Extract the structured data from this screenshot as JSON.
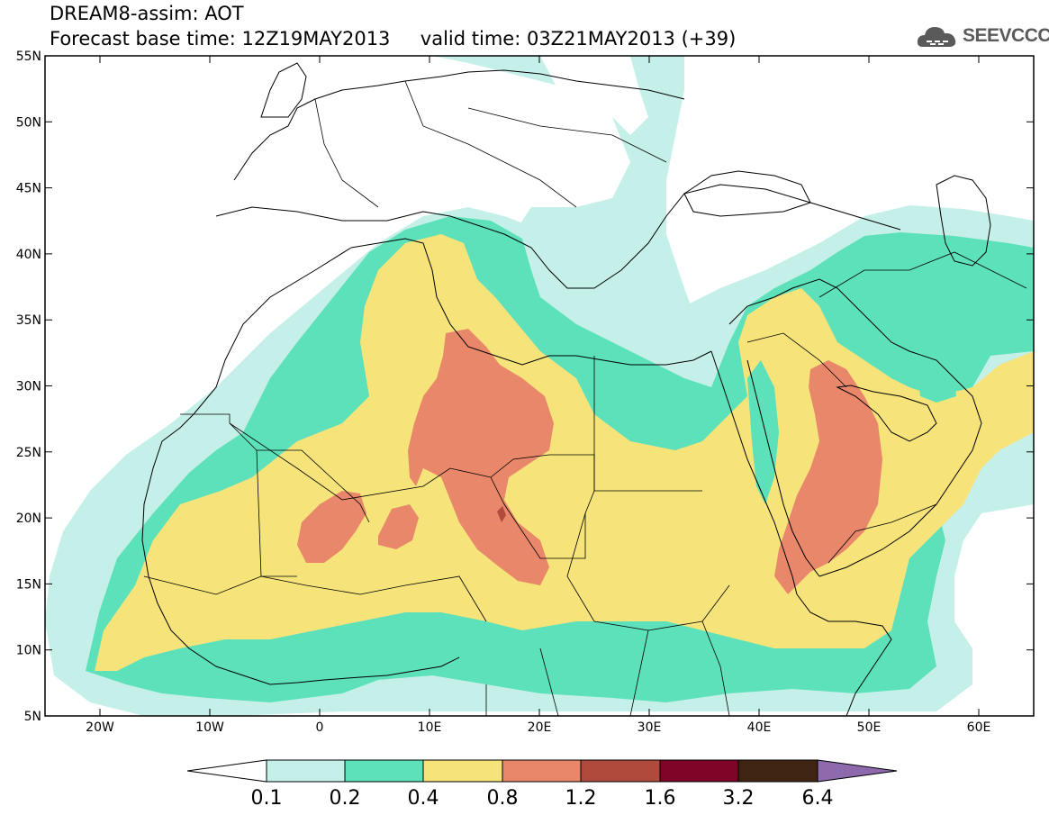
{
  "header": {
    "line1": "DREAM8-assim: AOT",
    "line2": "Forecast base time: 12Z19MAY2013     valid time: 03Z21MAY2013 (+39)"
  },
  "logo": {
    "text": "SEEVCCC"
  },
  "map": {
    "lat_labels": [
      "55N",
      "50N",
      "45N",
      "40N",
      "35N",
      "30N",
      "25N",
      "20N",
      "15N",
      "10N",
      "5N"
    ],
    "lon_labels": [
      "20W",
      "10W",
      "0",
      "10E",
      "20E",
      "30E",
      "40E",
      "50E",
      "60E"
    ],
    "colors": {
      "c01_02": "#c5f0e9",
      "c02_04": "#5ce1bb",
      "c04_08": "#f6e47a",
      "c08_12": "#e9876a",
      "c12_16": "#b04a3c",
      "c16_32": "#7e0428",
      "c32_64": "#3f2412",
      "c64": "#8e6aad"
    }
  },
  "colorbar": {
    "labels": [
      "0.1",
      "0.2",
      "0.4",
      "0.8",
      "1.2",
      "1.6",
      "3.2",
      "6.4"
    ]
  }
}
